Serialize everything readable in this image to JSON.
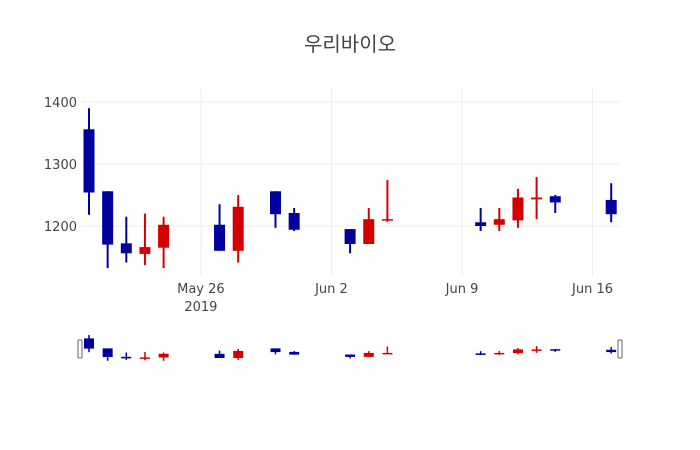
{
  "chart_data": {
    "type": "candlestick",
    "title": "우리바이오",
    "xlabel": "",
    "ylabel": "",
    "y_ticks": [
      1200,
      1300,
      1400
    ],
    "x_ticks": [
      "May 26\n2019",
      "Jun 2",
      "Jun 9",
      "Jun 16"
    ],
    "ylim": [
      1115,
      1415
    ],
    "increasing_color": "#d40000",
    "decreasing_color": "#00009f",
    "grid": true,
    "rangeslider": true,
    "series": [
      {
        "date": "2019-05-20",
        "open": 1356,
        "high": 1390,
        "low": 1218,
        "close": 1254
      },
      {
        "date": "2019-05-21",
        "open": 1256,
        "high": 1256,
        "low": 1132,
        "close": 1170
      },
      {
        "date": "2019-05-22",
        "open": 1172,
        "high": 1215,
        "low": 1141,
        "close": 1156
      },
      {
        "date": "2019-05-23",
        "open": 1155,
        "high": 1220,
        "low": 1137,
        "close": 1166
      },
      {
        "date": "2019-05-24",
        "open": 1165,
        "high": 1215,
        "low": 1132,
        "close": 1202
      },
      {
        "date": "2019-05-27",
        "open": 1202,
        "high": 1235,
        "low": 1160,
        "close": 1160
      },
      {
        "date": "2019-05-28",
        "open": 1160,
        "high": 1250,
        "low": 1141,
        "close": 1231
      },
      {
        "date": "2019-05-30",
        "open": 1256,
        "high": 1256,
        "low": 1197,
        "close": 1219
      },
      {
        "date": "2019-05-31",
        "open": 1221,
        "high": 1229,
        "low": 1192,
        "close": 1194
      },
      {
        "date": "2019-06-03",
        "open": 1195,
        "high": 1195,
        "low": 1156,
        "close": 1171
      },
      {
        "date": "2019-06-04",
        "open": 1171,
        "high": 1229,
        "low": 1171,
        "close": 1211
      },
      {
        "date": "2019-06-05",
        "open": 1209,
        "high": 1274,
        "low": 1207,
        "close": 1211
      },
      {
        "date": "2019-06-10",
        "open": 1206,
        "high": 1229,
        "low": 1192,
        "close": 1200
      },
      {
        "date": "2019-06-11",
        "open": 1202,
        "high": 1229,
        "low": 1192,
        "close": 1211
      },
      {
        "date": "2019-06-12",
        "open": 1209,
        "high": 1260,
        "low": 1197,
        "close": 1246
      },
      {
        "date": "2019-06-13",
        "open": 1243,
        "high": 1279,
        "low": 1211,
        "close": 1246
      },
      {
        "date": "2019-06-14",
        "open": 1248,
        "high": 1250,
        "low": 1221,
        "close": 1238
      },
      {
        "date": "2019-06-17",
        "open": 1242,
        "high": 1269,
        "low": 1206,
        "close": 1219
      }
    ]
  }
}
